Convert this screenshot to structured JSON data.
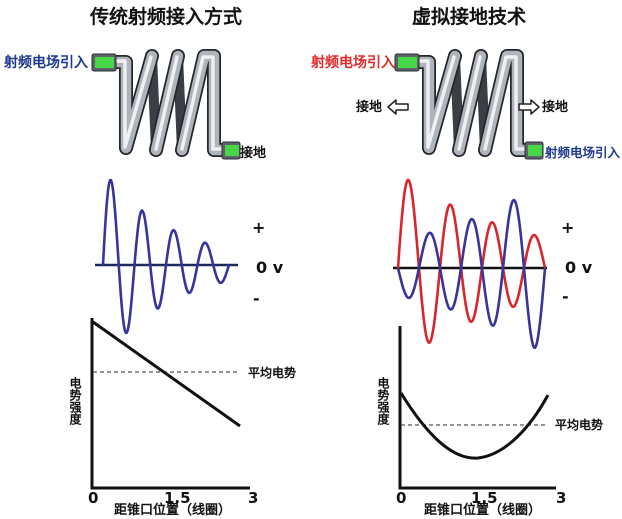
{
  "traditional": {
    "title": "传统射频接入方式",
    "feed_label": "射频电场引入",
    "ground_label": "接地",
    "wave_plus": "+",
    "wave_zero": "0 v",
    "wave_minus": "-",
    "avg_label": "平均电势",
    "y_axis_label": "电势强度",
    "x_ticks": [
      "0",
      "1.5",
      "3"
    ],
    "x_axis_label": "距锥口位置（线圈）"
  },
  "virtual_ground": {
    "title": "虚拟接地技术",
    "feed_label_top": "射频电场引入",
    "feed_label_bottom": "射频电场引入",
    "ground_label_left": "接地",
    "ground_label_right": "接地",
    "wave_plus": "+",
    "wave_zero": "0 v",
    "wave_minus": "-",
    "avg_label": "平均电势",
    "y_axis_label": "电势强度",
    "x_ticks": [
      "0",
      "1.5",
      "3"
    ],
    "x_axis_label": "距锥口位置（线圈）"
  },
  "colors": {
    "feed_blue": "#1c3a8e",
    "feed_red": "#e12a2a",
    "wave_blue": "#38349c",
    "wave_red": "#d8262c",
    "tab_green": "#46d646",
    "axis": "#111111"
  },
  "icons": {
    "ground_left_arrow": "outlined-left-arrow-icon",
    "ground_right_arrow": "outlined-right-arrow-icon"
  }
}
